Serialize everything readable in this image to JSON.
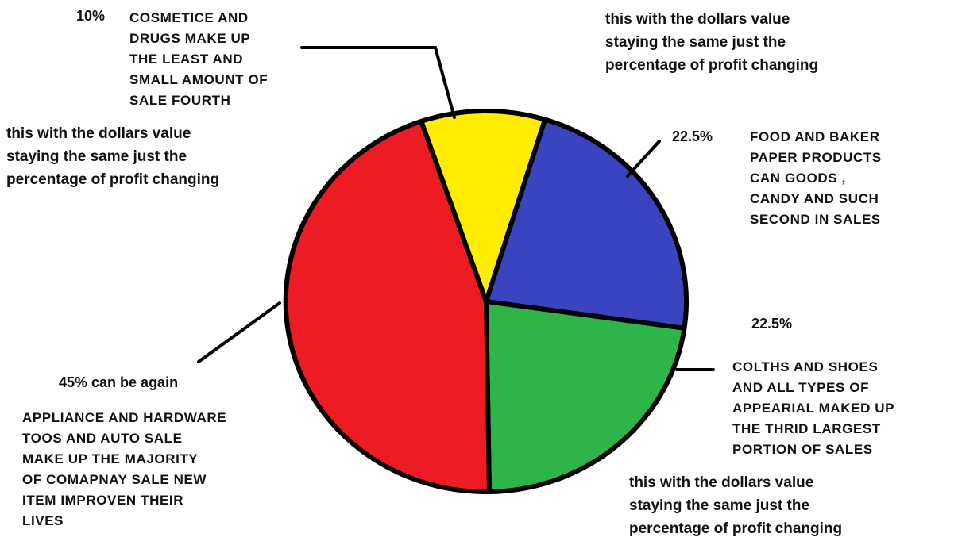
{
  "chart_data": {
    "type": "pie",
    "slices": [
      {
        "value": 10,
        "label": "10%",
        "color": "#ffee00",
        "description": "COSMETICE AND\nDRUGS MAKE UP\nTHE LEAST AND\nSMALL AMOUNT OF\nSALE  FOURTH"
      },
      {
        "value": 22.5,
        "label": "22.5%",
        "color": "#3b44c0",
        "description": "FOOD  AND BAKER\nPAPER PRODUCTS\nCAN GOODS ,\nCANDY AND  SUCH\nSECOND IN SALES"
      },
      {
        "value": 22.5,
        "label": "22.5%",
        "color": "#2db54a",
        "description": "COLTHS AND SHOES\nAND ALL TYPES OF\nAPPEARIAL MAKED UP\nTHE THRID LARGEST\nPORTION OF SALES"
      },
      {
        "value": 45,
        "label": "45% can be again",
        "color": "#ed1c24",
        "description": "APPLIANCE AND HARDWARE\nTOOS AND AUTO SALE\nMAKE UP THE MAJORITY\nOF COMAPNAY SALE NEW\nITEM IMPROVEN THEIR\nLIVES"
      }
    ],
    "notes": {
      "top_right": "this with the dollars value\nstaying the same just the\npercentage of profit changing",
      "left": "this with the dollars value\nstaying the same just the\npercentage of profit changing",
      "bottom_right": "this with the dollars value\nstaying the same just the\npercentage of profit changing"
    }
  }
}
